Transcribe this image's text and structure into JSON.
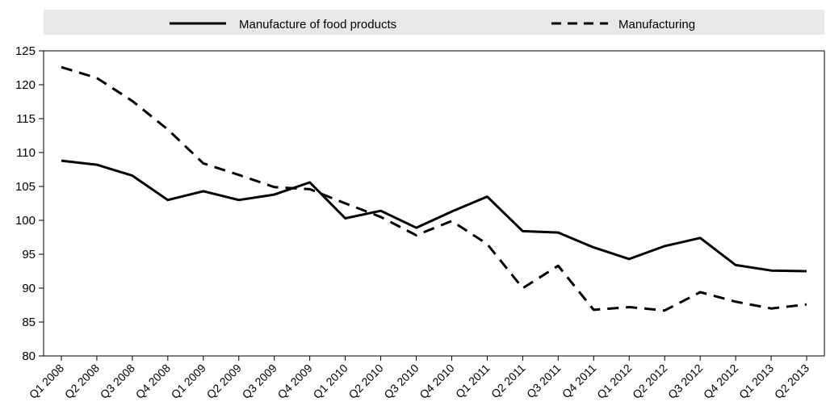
{
  "chart_data": {
    "type": "line",
    "categories": [
      "Q1 2008",
      "Q2 2008",
      "Q3 2008",
      "Q4 2008",
      "Q1 2009",
      "Q2 2009",
      "Q3 2009",
      "Q4 2009",
      "Q1 2010",
      "Q2 2010",
      "Q3 2010",
      "Q4 2010",
      "Q1 2011",
      "Q2 2011",
      "Q3 2011",
      "Q4 2011",
      "Q1 2012",
      "Q2 2012",
      "Q3 2012",
      "Q4 2012",
      "Q1 2013",
      "Q2 2013"
    ],
    "series": [
      {
        "name": "Manufacture of food products",
        "style": "solid",
        "values": [
          108.8,
          108.2,
          106.6,
          103.0,
          104.3,
          103.0,
          103.8,
          105.6,
          100.3,
          101.4,
          98.9,
          101.3,
          103.5,
          98.4,
          98.2,
          96.0,
          94.3,
          96.2,
          97.4,
          93.4,
          92.6,
          92.5
        ]
      },
      {
        "name": "Manufacturing",
        "style": "dashed",
        "values": [
          122.6,
          121.0,
          117.6,
          113.4,
          108.4,
          106.7,
          104.9,
          104.6,
          102.5,
          100.5,
          97.8,
          99.9,
          96.5,
          90.0,
          93.3,
          86.8,
          87.2,
          86.7,
          89.4,
          88.0,
          87.0,
          87.6
        ]
      }
    ],
    "ylim": [
      80,
      125
    ],
    "yticks": [
      80,
      85,
      90,
      95,
      100,
      105,
      110,
      115,
      120,
      125
    ],
    "grid": false,
    "legend_position": "top",
    "colors": {
      "line": "#000000",
      "legend_band": "#e8e8e8"
    }
  }
}
